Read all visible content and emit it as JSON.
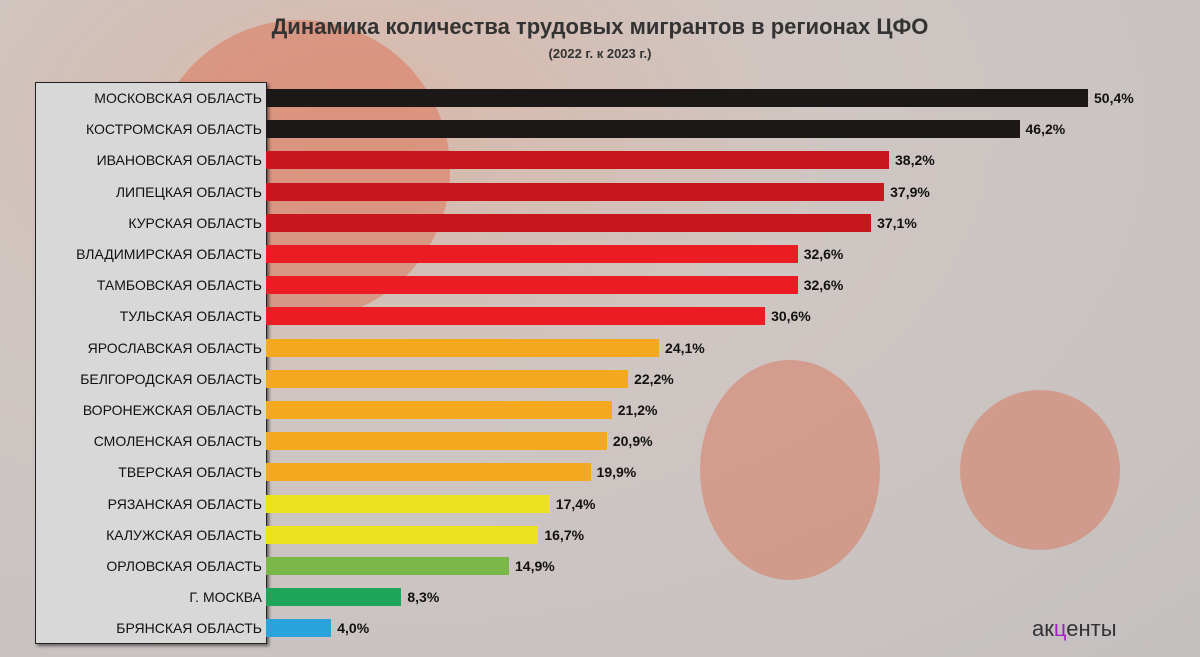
{
  "chart_data": {
    "type": "bar",
    "orientation": "horizontal",
    "title": "Динамика количества трудовых мигрантов в регионах ЦФО",
    "subtitle": "(2022 г. к 2023 г.)",
    "unit": "%",
    "categories": [
      "МОСКОВСКАЯ ОБЛАСТЬ",
      "КОСТРОМСКАЯ ОБЛАСТЬ",
      "ИВАНОВСКАЯ ОБЛАСТЬ",
      "ЛИПЕЦКАЯ ОБЛАСТЬ",
      "КУРСКАЯ ОБЛАСТЬ",
      "ВЛАДИМИРСКАЯ ОБЛАСТЬ",
      "ТАМБОВСКАЯ ОБЛАСТЬ",
      "ТУЛЬСКАЯ ОБЛАСТЬ",
      "ЯРОСЛАВСКАЯ ОБЛАСТЬ",
      "БЕЛГОРОДСКАЯ ОБЛАСТЬ",
      "ВОРОНЕЖСКАЯ ОБЛАСТЬ",
      "СМОЛЕНСКАЯ ОБЛАСТЬ",
      "ТВЕРСКАЯ ОБЛАСТЬ",
      "РЯЗАНСКАЯ ОБЛАСТЬ",
      "КАЛУЖСКАЯ ОБЛАСТЬ",
      "ОРЛОВСКАЯ ОБЛАСТЬ",
      "Г. МОСКВА",
      "БРЯНСКАЯ ОБЛАСТЬ"
    ],
    "values": [
      50.4,
      46.2,
      38.2,
      37.9,
      37.1,
      32.6,
      32.6,
      30.6,
      24.1,
      22.2,
      21.2,
      20.9,
      19.9,
      17.4,
      16.7,
      14.9,
      8.3,
      4.0
    ],
    "value_labels": [
      "50,4%",
      "46,2%",
      "38,2%",
      "37,9%",
      "37,1%",
      "32,6%",
      "32,6%",
      "30,6%",
      "24,1%",
      "22,2%",
      "21,2%",
      "20,9%",
      "19,9%",
      "17,4%",
      "16,7%",
      "14,9%",
      "8,3%",
      "4,0%"
    ],
    "colors": [
      "#1c1818",
      "#1c1818",
      "#c8161d",
      "#c8161d",
      "#c8161d",
      "#ec1c24",
      "#ec1c24",
      "#ec1c24",
      "#f4a81d",
      "#f4a81d",
      "#f4a81d",
      "#f4a81d",
      "#f4a81d",
      "#ece21e",
      "#ece21e",
      "#7ab648",
      "#1fa55a",
      "#29a3dc"
    ],
    "grid": false,
    "legend": "none"
  },
  "logo": {
    "pre": "ак",
    "mid": "ц",
    "post": "енты"
  }
}
